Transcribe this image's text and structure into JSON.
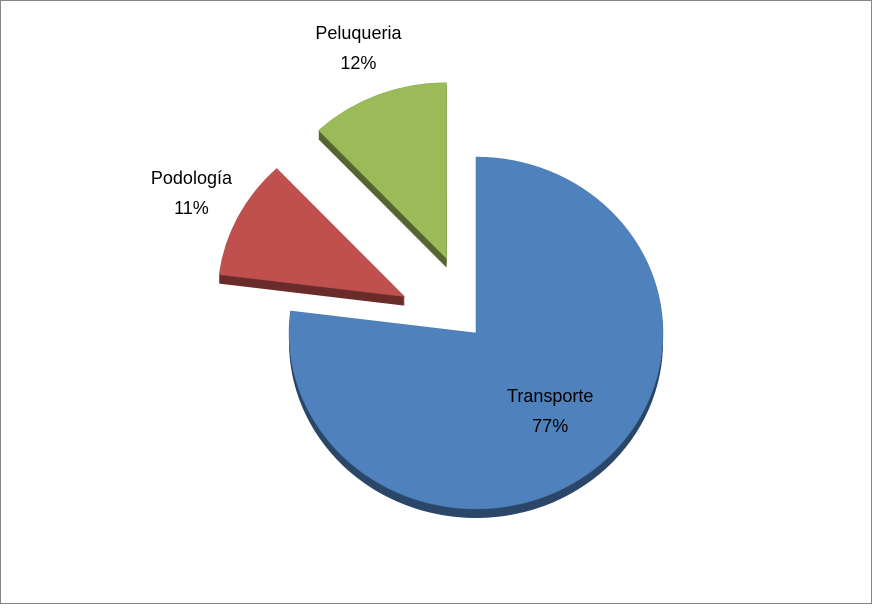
{
  "chart_data": {
    "type": "pie",
    "categories": [
      "Transporte",
      "Podología",
      "Peluqueria"
    ],
    "values": [
      77,
      11,
      12
    ],
    "value_labels": [
      "77%",
      "11%",
      "12%"
    ],
    "colors": [
      "#4f81bd",
      "#c0504d",
      "#9bbb59"
    ]
  }
}
